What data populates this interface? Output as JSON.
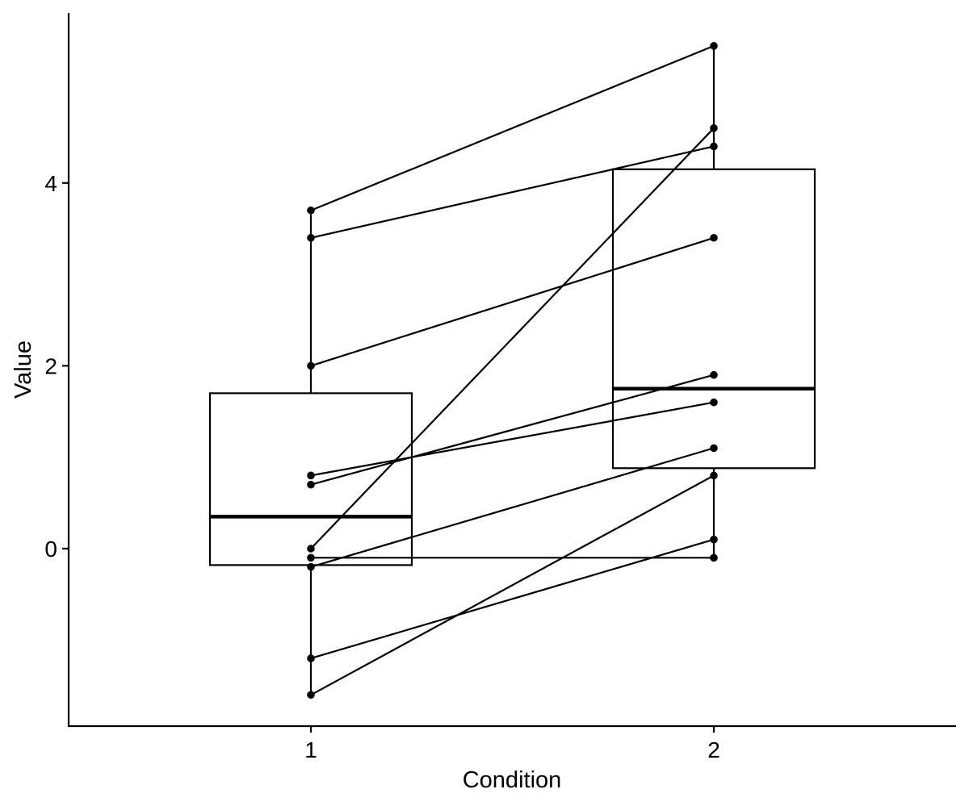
{
  "chart_data": {
    "type": "boxplot-paired",
    "xlabel": "Condition",
    "ylabel": "Value",
    "categories": [
      "1",
      "2"
    ],
    "ylim": [
      -1.95,
      5.8
    ],
    "yticks": [
      0,
      2,
      4
    ],
    "grid": false,
    "boxes": [
      {
        "category": "1",
        "q1": -0.18,
        "median": 0.35,
        "q3": 1.7,
        "whisker_low": -1.6,
        "whisker_high": 3.7
      },
      {
        "category": "2",
        "q1": 0.88,
        "median": 1.75,
        "q3": 4.15,
        "whisker_low": -0.1,
        "whisker_high": 5.5
      }
    ],
    "pairs": [
      [
        3.7,
        5.5
      ],
      [
        3.4,
        4.4
      ],
      [
        2.0,
        3.4
      ],
      [
        0.8,
        1.6
      ],
      [
        0.7,
        1.9
      ],
      [
        0.0,
        4.6
      ],
      [
        -0.1,
        -0.1
      ],
      [
        -0.2,
        1.1
      ],
      [
        -1.2,
        0.1
      ],
      [
        -1.6,
        0.8
      ]
    ]
  }
}
